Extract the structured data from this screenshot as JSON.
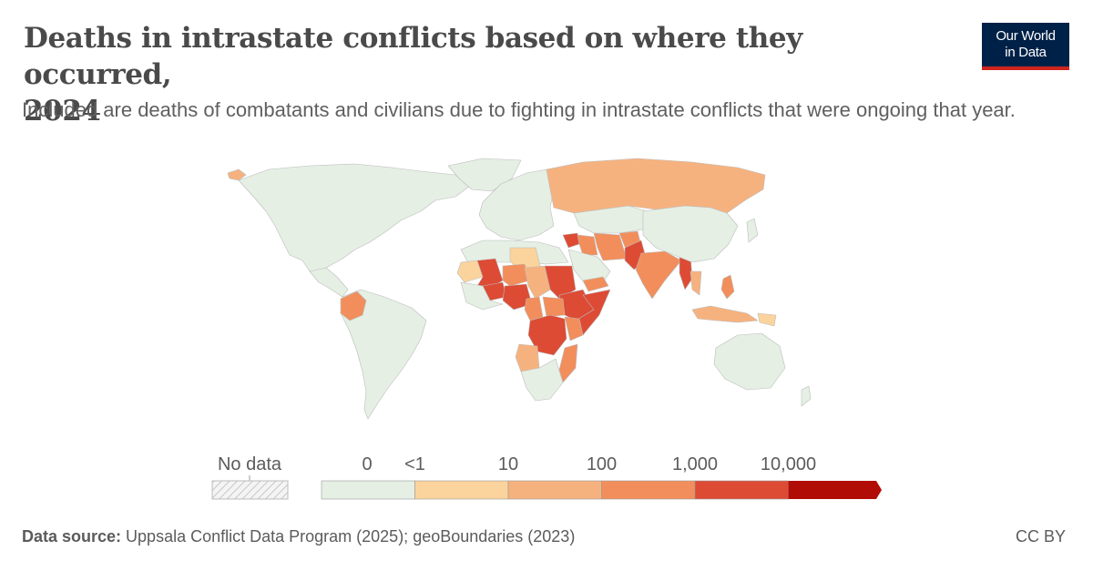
{
  "header": {
    "title_line1": "Deaths in intrastate conflicts based on where they occurred,",
    "title_line2": "2024",
    "subtitle": "Included are deaths of combatants and civilians due to fighting in intrastate conflicts that were ongoing that year."
  },
  "logo": {
    "line1": "Our World",
    "line2": "in Data"
  },
  "legend": {
    "no_data_label": "No data",
    "bins": [
      {
        "label_left": "0",
        "label_right": "<1",
        "color": "#e5efe4"
      },
      {
        "label_left": "",
        "label_right": "10",
        "color": "#fbd39c"
      },
      {
        "label_left": "",
        "label_right": "100",
        "color": "#f6b27e"
      },
      {
        "label_left": "",
        "label_right": "1,000",
        "color": "#f28e5b"
      },
      {
        "label_left": "",
        "label_right": "10,000",
        "color": "#dd4b35"
      },
      {
        "label_left": "",
        "label_right": "",
        "color": "#b10c06"
      }
    ]
  },
  "footer": {
    "source_label": "Data source:",
    "source_text": " Uppsala Conflict Data Program (2025); geoBoundaries (2023)",
    "license": "CC BY"
  },
  "map_data": {
    "colors": {
      "none": "#e5efe4",
      "lt10": "#fbd39c",
      "lt100": "#f6b27e",
      "lt1000": "#f28e5b",
      "lt10000": "#dd4b35",
      "gt10000": "#b10c06"
    },
    "regions": [
      {
        "name": "Russia",
        "level": "lt100"
      },
      {
        "name": "Colombia",
        "level": "lt1000"
      },
      {
        "name": "Mali",
        "level": "lt10000"
      },
      {
        "name": "Burkina Faso",
        "level": "lt10000"
      },
      {
        "name": "Nigeria",
        "level": "lt10000"
      },
      {
        "name": "Sudan",
        "level": "lt10000"
      },
      {
        "name": "Ethiopia",
        "level": "lt10000"
      },
      {
        "name": "Somalia",
        "level": "lt10000"
      },
      {
        "name": "DR Congo",
        "level": "lt10000"
      },
      {
        "name": "Syria",
        "level": "lt10000"
      },
      {
        "name": "Pakistan",
        "level": "lt10000"
      },
      {
        "name": "Myanmar",
        "level": "lt10000"
      },
      {
        "name": "Iraq",
        "level": "lt1000"
      },
      {
        "name": "Afghanistan",
        "level": "lt1000"
      },
      {
        "name": "India",
        "level": "lt1000"
      },
      {
        "name": "Yemen",
        "level": "lt1000"
      },
      {
        "name": "Mozambique",
        "level": "lt1000"
      },
      {
        "name": "Niger",
        "level": "lt1000"
      },
      {
        "name": "Cameroon",
        "level": "lt1000"
      },
      {
        "name": "Chad",
        "level": "lt100"
      },
      {
        "name": "South Sudan",
        "level": "lt1000"
      },
      {
        "name": "Kenya",
        "level": "lt1000"
      },
      {
        "name": "Philippines",
        "level": "lt1000"
      },
      {
        "name": "Libya",
        "level": "lt10"
      },
      {
        "name": "Mauritania",
        "level": "lt10"
      },
      {
        "name": "Angola",
        "level": "lt100"
      },
      {
        "name": "Iran",
        "level": "lt1000"
      },
      {
        "name": "Thailand",
        "level": "lt100"
      },
      {
        "name": "Indonesia",
        "level": "lt100"
      },
      {
        "name": "Papua New Guinea",
        "level": "lt10"
      },
      {
        "name": "Iceland",
        "level": "lt100"
      }
    ]
  }
}
